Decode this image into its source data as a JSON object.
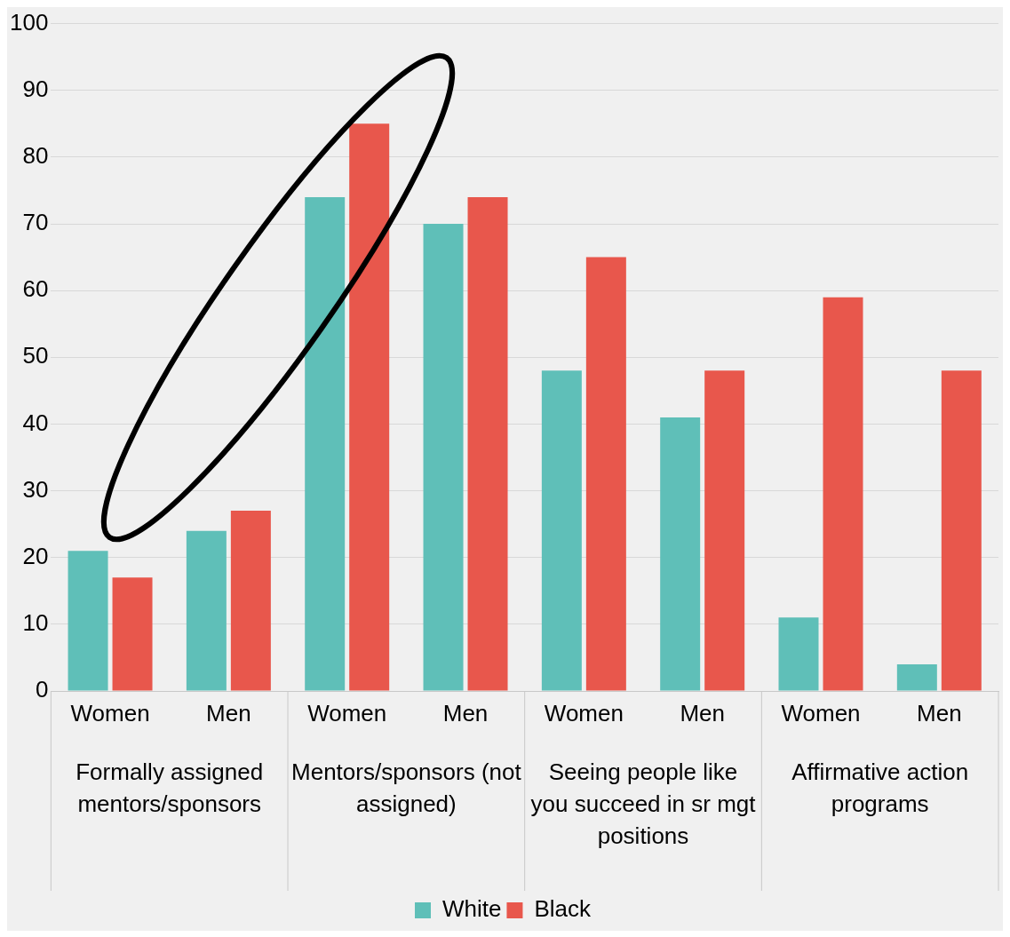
{
  "chart_data": {
    "type": "bar",
    "categories": [
      "Women",
      "Men",
      "Women",
      "Men",
      "Women",
      "Men",
      "Women",
      "Men"
    ],
    "series": [
      {
        "name": "White",
        "color": "#5fbfb8",
        "values": [
          21,
          24,
          74,
          70,
          48,
          41,
          11,
          4
        ]
      },
      {
        "name": "Black",
        "color": "#e8574c",
        "values": [
          17,
          27,
          85,
          74,
          65,
          48,
          59,
          48
        ]
      }
    ],
    "annotations": [
      "Formally assigned mentors/sponsors",
      "Mentors/sponsors (not assigned)",
      "Seeing people like you succeed in sr mgt positions",
      "Affirmative action programs"
    ],
    "ylim": [
      0,
      100
    ],
    "yticks": [
      0,
      10,
      20,
      30,
      40,
      50,
      60,
      70,
      80,
      90,
      100
    ],
    "grid": "y",
    "legend": "bottom"
  }
}
